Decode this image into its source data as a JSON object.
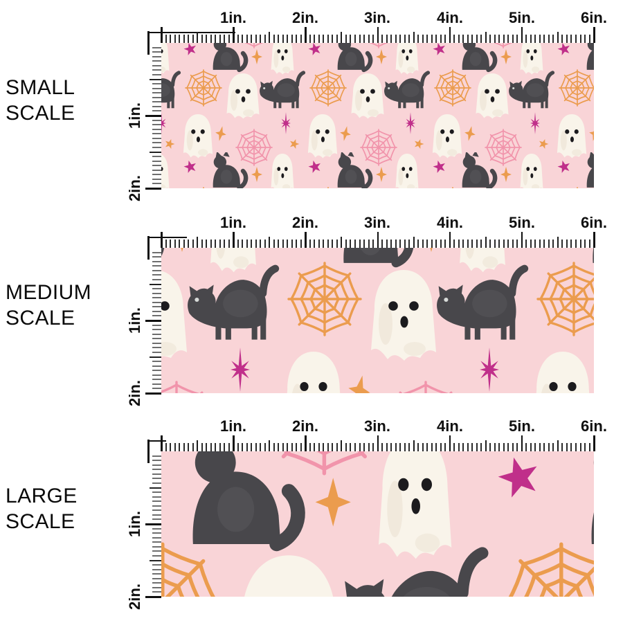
{
  "page": {
    "background_color": "#ffffff"
  },
  "sections": [
    {
      "id": "small",
      "label_line1": "SMALL",
      "label_line2": "SCALE"
    },
    {
      "id": "medium",
      "label_line1": "MEDIUM",
      "label_line2": "SCALE"
    },
    {
      "id": "large",
      "label_line1": "LARGE",
      "label_line2": "SCALE"
    }
  ],
  "ruler": {
    "horizontal_labels": [
      "1in.",
      "2in.",
      "3in.",
      "4in.",
      "5in.",
      "6in."
    ],
    "vertical_labels": [
      "1in.",
      "2in."
    ]
  },
  "fabric": {
    "theme": "Halloween watercolor pattern: black cats, ghosts, spiderwebs and stars on pink",
    "motifs": [
      "sitting-black-cat",
      "arched-black-cat",
      "ghost",
      "orange-spiderweb",
      "pink-spiderweb",
      "magenta-star",
      "magenta-starburst",
      "orange-sparkle",
      "orange-star"
    ],
    "colors": {
      "background_pink": "#f9d4d7",
      "cat_charcoal": "#48474b",
      "ghost_white": "#f9f4ea",
      "web_orange": "#eb9c4e",
      "web_pink": "#f194ab",
      "star_magenta": "#c02f8a",
      "ruler_black": "#101010"
    }
  }
}
